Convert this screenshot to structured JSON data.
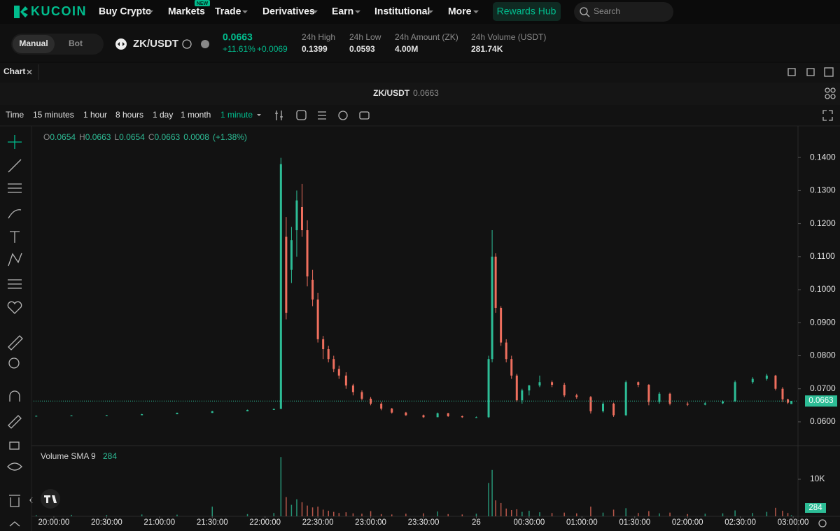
{
  "nav": {
    "logo": "KUCOIN",
    "items": [
      "Buy Crypto",
      "Markets",
      "Trade",
      "Derivatives",
      "Earn",
      "Institutional",
      "More"
    ],
    "badge": "NEW",
    "rewards": "Rewards Hub",
    "search": "Search"
  },
  "ticker": {
    "modes": [
      "Manual",
      "Bot"
    ],
    "pair": "ZK/USDT",
    "price": "0.0663",
    "change_pct": "+11.61%",
    "change": "+0.0069",
    "stats": [
      {
        "label": "24h High",
        "value": "0.1399"
      },
      {
        "label": "24h Low",
        "value": "0.0593"
      },
      {
        "label": "24h Amount (ZK)",
        "value": "4.00M"
      },
      {
        "label": "24h Volume (USDT)",
        "value": "281.74K"
      }
    ]
  },
  "chart_panel": {
    "tab": "Chart",
    "title_pair": "ZK/USDT",
    "title_price": "0.0663",
    "timeframes": [
      "Time",
      "15 minutes",
      "1 hour",
      "8 hours",
      "1 day",
      "1 month"
    ],
    "active_interval": "1 minute",
    "legend": [
      {
        "k": "O",
        "v": "0.0654"
      },
      {
        "k": "H",
        "v": "0.0663"
      },
      {
        "k": "L",
        "v": "0.0654"
      },
      {
        "k": "C",
        "v": "0.0663"
      }
    ],
    "legend_change": "0.0008",
    "legend_pct": "(+1.38%)"
  },
  "chart_data": {
    "type": "candlestick",
    "up_color": "#2dbd96",
    "down_color": "#ef6f5e",
    "x": [
      "19:50:00",
      "20:10:00",
      "20:30:00",
      "20:50:00",
      "21:10:00",
      "21:30:00",
      "21:50:00",
      "22:05:00",
      "22:09:00",
      "22:12:00",
      "22:15:00",
      "22:18:00",
      "22:21:00",
      "22:24:00",
      "22:27:00",
      "22:30:00",
      "22:33:00",
      "22:36:00",
      "22:39:00",
      "22:42:00",
      "22:46:00",
      "22:50:00",
      "22:55:00",
      "23:00:00",
      "23:06:00",
      "23:12:00",
      "23:20:00",
      "23:30:00",
      "23:38:00",
      "23:44:00",
      "23:52:00",
      "00:00:00",
      "00:07:00",
      "00:09:00",
      "00:11:00",
      "00:14:00",
      "00:17:00",
      "00:20:00",
      "00:23:00",
      "00:26:00",
      "00:30:00",
      "00:36:00",
      "00:43:00",
      "00:50:00",
      "00:57:00",
      "01:05:00",
      "01:12:00",
      "01:18:00",
      "01:25:00",
      "01:32:00",
      "01:38:00",
      "01:44:00",
      "01:50:00",
      "02:00:00",
      "02:10:00",
      "02:20:00",
      "02:27:00",
      "02:37:00",
      "02:45:00",
      "02:50:00",
      "02:54:00",
      "02:57:00",
      "02:59:00"
    ],
    "open": [
      0.0618,
      0.0618,
      0.0619,
      0.062,
      0.0623,
      0.0627,
      0.0632,
      0.0636,
      0.0639,
      0.116,
      0.106,
      0.118,
      0.125,
      0.118,
      0.103,
      0.097,
      0.085,
      0.082,
      0.079,
      0.076,
      0.074,
      0.071,
      0.069,
      0.067,
      0.0655,
      0.064,
      0.0628,
      0.062,
      0.0614,
      0.0626,
      0.0617,
      0.0614,
      0.0614,
      0.079,
      0.11,
      0.0945,
      0.084,
      0.079,
      0.074,
      0.0665,
      0.0695,
      0.071,
      0.072,
      0.0712,
      0.068,
      0.0675,
      0.0632,
      0.0655,
      0.062,
      0.072,
      0.0712,
      0.066,
      0.0685,
      0.0655,
      0.0652,
      0.0656,
      0.0662,
      0.072,
      0.073,
      0.074,
      0.07,
      0.0668,
      0.0654
    ],
    "high": [
      0.0619,
      0.062,
      0.0621,
      0.0624,
      0.0628,
      0.0633,
      0.0637,
      0.064,
      0.1399,
      0.122,
      0.119,
      0.13,
      0.132,
      0.121,
      0.106,
      0.099,
      0.086,
      0.083,
      0.08,
      0.077,
      0.075,
      0.0715,
      0.0695,
      0.0675,
      0.066,
      0.0642,
      0.063,
      0.0622,
      0.0628,
      0.0627,
      0.0619,
      0.0616,
      0.08,
      0.118,
      0.111,
      0.095,
      0.085,
      0.08,
      0.0745,
      0.07,
      0.0712,
      0.074,
      0.0725,
      0.0718,
      0.0685,
      0.0678,
      0.066,
      0.0658,
      0.0725,
      0.0722,
      0.0714,
      0.069,
      0.0688,
      0.066,
      0.066,
      0.0665,
      0.0725,
      0.0735,
      0.0745,
      0.0742,
      0.0705,
      0.067,
      0.0663
    ],
    "low": [
      0.0617,
      0.0618,
      0.0619,
      0.062,
      0.0623,
      0.0627,
      0.0632,
      0.0636,
      0.0639,
      0.091,
      0.102,
      0.11,
      0.116,
      0.101,
      0.095,
      0.084,
      0.079,
      0.078,
      0.075,
      0.073,
      0.07,
      0.068,
      0.0665,
      0.065,
      0.0635,
      0.0625,
      0.0618,
      0.0612,
      0.0614,
      0.0615,
      0.0612,
      0.0612,
      0.0612,
      0.078,
      0.093,
      0.083,
      0.078,
      0.073,
      0.066,
      0.0655,
      0.068,
      0.0705,
      0.0705,
      0.0675,
      0.067,
      0.0625,
      0.0628,
      0.0615,
      0.0618,
      0.0705,
      0.065,
      0.0655,
      0.065,
      0.0648,
      0.065,
      0.0654,
      0.066,
      0.0715,
      0.0725,
      0.0695,
      0.066,
      0.0654,
      0.0654
    ],
    "close": [
      0.0618,
      0.0619,
      0.062,
      0.0623,
      0.0627,
      0.0632,
      0.0636,
      0.0639,
      0.138,
      0.093,
      0.115,
      0.127,
      0.118,
      0.104,
      0.097,
      0.085,
      0.082,
      0.079,
      0.076,
      0.074,
      0.071,
      0.069,
      0.067,
      0.0655,
      0.064,
      0.0628,
      0.062,
      0.0614,
      0.0626,
      0.0617,
      0.0614,
      0.0614,
      0.079,
      0.11,
      0.0945,
      0.084,
      0.079,
      0.074,
      0.0665,
      0.0695,
      0.071,
      0.072,
      0.0712,
      0.068,
      0.0675,
      0.0632,
      0.0655,
      0.062,
      0.072,
      0.0712,
      0.066,
      0.0685,
      0.0655,
      0.0652,
      0.0656,
      0.0662,
      0.072,
      0.073,
      0.074,
      0.07,
      0.0668,
      0.0658,
      0.0663
    ],
    "volumes": [
      300,
      400,
      350,
      500,
      450,
      2600,
      600,
      900,
      16000,
      5200,
      3100,
      4600,
      3800,
      2900,
      2400,
      2600,
      1800,
      1500,
      1200,
      900,
      1100,
      800,
      700,
      1400,
      600,
      500,
      700,
      800,
      1300,
      600,
      500,
      700,
      9000,
      12500,
      4300,
      3600,
      2100,
      1700,
      1900,
      1200,
      1500,
      1100,
      900,
      1000,
      800,
      2600,
      1000,
      1800,
      2200,
      900,
      1400,
      800,
      1000,
      600,
      700,
      800,
      1600,
      900,
      1200,
      2300,
      1500,
      900,
      284
    ],
    "xlim": [
      "19:48:30",
      "03:02:45"
    ],
    "xticks": [
      "20:00:00",
      "20:30:00",
      "21:00:00",
      "21:30:00",
      "22:00:00",
      "22:30:00",
      "23:00:00",
      "23:30:00",
      {
        "value": "00:00:00",
        "label": "26"
      },
      "00:30:00",
      "01:00:00",
      "01:30:00",
      "02:00:00",
      "02:30:00",
      "03:00:00"
    ],
    "ylim": [
      0.053,
      0.1485
    ],
    "yticks": [
      {
        "value": 0.06,
        "label": "0.0600"
      },
      {
        "value": 0.07,
        "label": "0.0700"
      },
      {
        "value": 0.08,
        "label": "0.0800"
      },
      {
        "value": 0.09,
        "label": "0.0900"
      },
      {
        "value": 0.1,
        "label": "0.1000"
      },
      {
        "value": 0.11,
        "label": "0.1100"
      },
      {
        "value": 0.12,
        "label": "0.1200"
      },
      {
        "value": 0.13,
        "label": "0.1300"
      },
      {
        "value": 0.14,
        "label": "0.1400"
      }
    ],
    "last_price": 0.0663,
    "volume_title": "Volume SMA 9",
    "volume_sma": 284,
    "volume_ylim": [
      0,
      18500
    ],
    "volume_yticks": [
      {
        "value": 10000,
        "label": "10K"
      }
    ]
  }
}
